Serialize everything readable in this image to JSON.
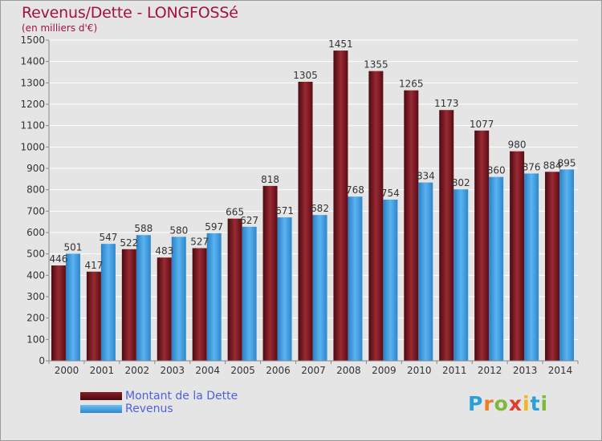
{
  "page": {
    "title": "Revenus/Dette - LONGFOSSé",
    "subtitle": "(en milliers d'€)"
  },
  "chart_data": {
    "type": "bar",
    "categories": [
      "2000",
      "2001",
      "2002",
      "2003",
      "2004",
      "2005",
      "2006",
      "2007",
      "2008",
      "2009",
      "2010",
      "2011",
      "2012",
      "2013",
      "2014"
    ],
    "series": [
      {
        "name": "Montant de la Dette",
        "color": "#6e0f16",
        "values": [
          446,
          417,
          522,
          483,
          527,
          665,
          818,
          1305,
          1451,
          1355,
          1265,
          1173,
          1077,
          980,
          884
        ]
      },
      {
        "name": "Revenus",
        "color": "#3e9de6",
        "values": [
          501,
          547,
          588,
          580,
          597,
          627,
          671,
          682,
          768,
          754,
          834,
          802,
          860,
          876,
          895
        ]
      }
    ],
    "ylim": [
      0,
      1500
    ],
    "yticks": [
      0,
      100,
      200,
      300,
      400,
      500,
      600,
      700,
      800,
      900,
      1000,
      1100,
      1200,
      1300,
      1400,
      1500
    ],
    "grid": true,
    "legend_position": "bottom-left"
  },
  "logo": {
    "letters": [
      "P",
      "r",
      "o",
      "x",
      "i",
      "t",
      "i"
    ],
    "colors": [
      "#2d9fd8",
      "#f07c22",
      "#7fb83a",
      "#e23b2e",
      "#f2b51b",
      "#2d9fd8",
      "#7fb83a"
    ]
  }
}
